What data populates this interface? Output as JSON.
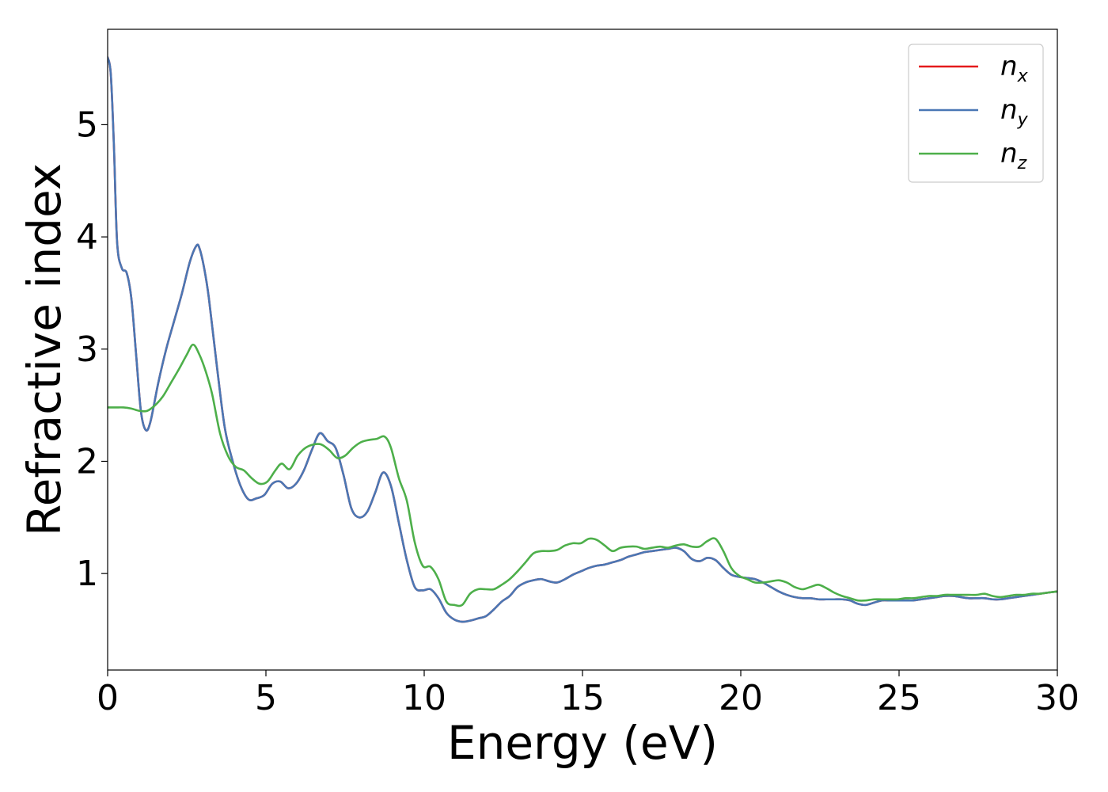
{
  "chart_data": {
    "type": "line",
    "xlabel": "Energy (eV)",
    "ylabel": "Refractive index",
    "xlim": [
      0,
      30
    ],
    "ylim": [
      0.14,
      5.85
    ],
    "x_ticks": [
      0,
      5,
      10,
      15,
      20,
      25,
      30
    ],
    "y_ticks": [
      1,
      2,
      3,
      4,
      5
    ],
    "grid": false,
    "legend_position": "top-right",
    "series": [
      {
        "name": "n_x",
        "label_main": "n",
        "label_sub": "x",
        "color": "#e41a1c",
        "x": [
          0,
          0.1,
          0.2,
          0.3,
          0.45,
          0.6,
          0.75,
          0.9,
          1.05,
          1.2,
          1.35,
          1.6,
          1.85,
          2.1,
          2.35,
          2.6,
          2.8,
          2.9,
          3.05,
          3.2,
          3.45,
          3.7,
          3.95,
          4.2,
          4.45,
          4.7,
          4.95,
          5.2,
          5.45,
          5.7,
          5.95,
          6.2,
          6.45,
          6.7,
          6.95,
          7.2,
          7.45,
          7.7,
          7.95,
          8.2,
          8.45,
          8.7,
          8.95,
          9.2,
          9.45,
          9.7,
          9.95,
          10.2,
          10.45,
          10.7,
          10.95,
          11.2,
          11.45,
          11.7,
          11.95,
          12.2,
          12.45,
          12.7,
          12.95,
          13.2,
          13.45,
          13.7,
          13.95,
          14.2,
          14.45,
          14.7,
          14.95,
          15.2,
          15.45,
          15.7,
          15.95,
          16.2,
          16.45,
          16.7,
          16.95,
          17.2,
          17.45,
          17.7,
          17.95,
          18.2,
          18.45,
          18.7,
          18.95,
          19.2,
          19.45,
          19.7,
          19.95,
          20.2,
          20.45,
          20.7,
          20.95,
          21.2,
          21.45,
          21.7,
          21.95,
          22.2,
          22.45,
          22.7,
          22.95,
          23.2,
          23.45,
          23.7,
          23.95,
          24.2,
          24.45,
          24.7,
          24.95,
          25.2,
          25.45,
          25.7,
          25.95,
          26.2,
          26.45,
          26.7,
          26.95,
          27.2,
          27.45,
          27.7,
          27.95,
          28.2,
          28.45,
          28.7,
          28.95,
          29.2,
          29.45,
          29.7,
          30
        ],
        "y": [
          5.6,
          5.45,
          4.8,
          3.95,
          3.72,
          3.68,
          3.45,
          2.95,
          2.45,
          2.28,
          2.35,
          2.7,
          3.0,
          3.25,
          3.5,
          3.78,
          3.92,
          3.9,
          3.72,
          3.45,
          2.85,
          2.3,
          2.0,
          1.78,
          1.66,
          1.67,
          1.7,
          1.8,
          1.82,
          1.76,
          1.8,
          1.92,
          2.1,
          2.25,
          2.18,
          2.12,
          1.88,
          1.58,
          1.5,
          1.55,
          1.72,
          1.9,
          1.78,
          1.45,
          1.12,
          0.88,
          0.85,
          0.86,
          0.78,
          0.65,
          0.59,
          0.57,
          0.58,
          0.6,
          0.62,
          0.68,
          0.75,
          0.8,
          0.88,
          0.92,
          0.94,
          0.95,
          0.93,
          0.92,
          0.95,
          0.99,
          1.02,
          1.05,
          1.07,
          1.08,
          1.1,
          1.12,
          1.15,
          1.17,
          1.19,
          1.2,
          1.21,
          1.22,
          1.23,
          1.2,
          1.13,
          1.11,
          1.14,
          1.12,
          1.05,
          0.99,
          0.97,
          0.96,
          0.95,
          0.92,
          0.88,
          0.84,
          0.81,
          0.79,
          0.78,
          0.78,
          0.77,
          0.77,
          0.77,
          0.77,
          0.76,
          0.73,
          0.72,
          0.74,
          0.76,
          0.76,
          0.76,
          0.76,
          0.76,
          0.77,
          0.78,
          0.79,
          0.8,
          0.8,
          0.79,
          0.78,
          0.78,
          0.78,
          0.77,
          0.77,
          0.78,
          0.79,
          0.8,
          0.81,
          0.82,
          0.83,
          0.84
        ]
      },
      {
        "name": "n_y",
        "label_main": "n",
        "label_sub": "y",
        "color": "#4a77b4",
        "x": [
          0,
          0.1,
          0.2,
          0.3,
          0.45,
          0.6,
          0.75,
          0.9,
          1.05,
          1.2,
          1.35,
          1.6,
          1.85,
          2.1,
          2.35,
          2.6,
          2.8,
          2.9,
          3.05,
          3.2,
          3.45,
          3.7,
          3.95,
          4.2,
          4.45,
          4.7,
          4.95,
          5.2,
          5.45,
          5.7,
          5.95,
          6.2,
          6.45,
          6.7,
          6.95,
          7.2,
          7.45,
          7.7,
          7.95,
          8.2,
          8.45,
          8.7,
          8.95,
          9.2,
          9.45,
          9.7,
          9.95,
          10.2,
          10.45,
          10.7,
          10.95,
          11.2,
          11.45,
          11.7,
          11.95,
          12.2,
          12.45,
          12.7,
          12.95,
          13.2,
          13.45,
          13.7,
          13.95,
          14.2,
          14.45,
          14.7,
          14.95,
          15.2,
          15.45,
          15.7,
          15.95,
          16.2,
          16.45,
          16.7,
          16.95,
          17.2,
          17.45,
          17.7,
          17.95,
          18.2,
          18.45,
          18.7,
          18.95,
          19.2,
          19.45,
          19.7,
          19.95,
          20.2,
          20.45,
          20.7,
          20.95,
          21.2,
          21.45,
          21.7,
          21.95,
          22.2,
          22.45,
          22.7,
          22.95,
          23.2,
          23.45,
          23.7,
          23.95,
          24.2,
          24.45,
          24.7,
          24.95,
          25.2,
          25.45,
          25.7,
          25.95,
          26.2,
          26.45,
          26.7,
          26.95,
          27.2,
          27.45,
          27.7,
          27.95,
          28.2,
          28.45,
          28.7,
          28.95,
          29.2,
          29.45,
          29.7,
          30
        ],
        "y": [
          5.6,
          5.45,
          4.8,
          3.95,
          3.72,
          3.68,
          3.45,
          2.95,
          2.45,
          2.28,
          2.35,
          2.7,
          3.0,
          3.25,
          3.5,
          3.78,
          3.92,
          3.9,
          3.72,
          3.45,
          2.85,
          2.3,
          2.0,
          1.78,
          1.66,
          1.67,
          1.7,
          1.8,
          1.82,
          1.76,
          1.8,
          1.92,
          2.1,
          2.25,
          2.18,
          2.12,
          1.88,
          1.58,
          1.5,
          1.55,
          1.72,
          1.9,
          1.78,
          1.45,
          1.12,
          0.88,
          0.85,
          0.86,
          0.78,
          0.65,
          0.59,
          0.57,
          0.58,
          0.6,
          0.62,
          0.68,
          0.75,
          0.8,
          0.88,
          0.92,
          0.94,
          0.95,
          0.93,
          0.92,
          0.95,
          0.99,
          1.02,
          1.05,
          1.07,
          1.08,
          1.1,
          1.12,
          1.15,
          1.17,
          1.19,
          1.2,
          1.21,
          1.22,
          1.23,
          1.2,
          1.13,
          1.11,
          1.14,
          1.12,
          1.05,
          0.99,
          0.97,
          0.96,
          0.95,
          0.92,
          0.88,
          0.84,
          0.81,
          0.79,
          0.78,
          0.78,
          0.77,
          0.77,
          0.77,
          0.77,
          0.76,
          0.73,
          0.72,
          0.74,
          0.76,
          0.76,
          0.76,
          0.76,
          0.76,
          0.77,
          0.78,
          0.79,
          0.8,
          0.8,
          0.79,
          0.78,
          0.78,
          0.78,
          0.77,
          0.77,
          0.78,
          0.79,
          0.8,
          0.81,
          0.82,
          0.83,
          0.84
        ]
      },
      {
        "name": "n_z",
        "label_main": "n",
        "label_sub": "z",
        "color": "#4daf4a",
        "x": [
          0,
          0.25,
          0.5,
          0.75,
          1.0,
          1.25,
          1.5,
          1.75,
          2.0,
          2.25,
          2.5,
          2.7,
          2.9,
          3.1,
          3.3,
          3.55,
          3.8,
          4.05,
          4.3,
          4.55,
          4.8,
          5.05,
          5.3,
          5.5,
          5.75,
          6.0,
          6.25,
          6.5,
          6.75,
          7.0,
          7.25,
          7.5,
          7.75,
          8.0,
          8.25,
          8.5,
          8.75,
          8.95,
          9.2,
          9.45,
          9.7,
          9.95,
          10.2,
          10.45,
          10.7,
          10.95,
          11.2,
          11.45,
          11.7,
          11.95,
          12.2,
          12.45,
          12.7,
          12.95,
          13.2,
          13.45,
          13.7,
          13.95,
          14.2,
          14.45,
          14.7,
          14.95,
          15.2,
          15.45,
          15.7,
          15.95,
          16.2,
          16.45,
          16.7,
          16.95,
          17.2,
          17.45,
          17.7,
          17.95,
          18.2,
          18.45,
          18.7,
          18.95,
          19.2,
          19.45,
          19.7,
          19.95,
          20.2,
          20.45,
          20.7,
          20.95,
          21.2,
          21.45,
          21.7,
          21.95,
          22.2,
          22.45,
          22.7,
          22.95,
          23.2,
          23.45,
          23.7,
          23.95,
          24.2,
          24.45,
          24.7,
          24.95,
          25.2,
          25.45,
          25.7,
          25.95,
          26.2,
          26.45,
          26.7,
          26.95,
          27.2,
          27.45,
          27.7,
          27.95,
          28.2,
          28.45,
          28.7,
          28.95,
          29.2,
          29.45,
          29.7,
          30
        ],
        "y": [
          2.48,
          2.48,
          2.48,
          2.47,
          2.45,
          2.45,
          2.5,
          2.58,
          2.7,
          2.82,
          2.95,
          3.04,
          2.95,
          2.8,
          2.6,
          2.25,
          2.05,
          1.95,
          1.92,
          1.85,
          1.8,
          1.82,
          1.92,
          1.98,
          1.93,
          2.05,
          2.12,
          2.15,
          2.15,
          2.1,
          2.03,
          2.05,
          2.12,
          2.17,
          2.19,
          2.2,
          2.22,
          2.12,
          1.85,
          1.65,
          1.28,
          1.07,
          1.06,
          0.95,
          0.75,
          0.72,
          0.72,
          0.82,
          0.86,
          0.86,
          0.86,
          0.9,
          0.95,
          1.02,
          1.1,
          1.18,
          1.2,
          1.2,
          1.21,
          1.25,
          1.27,
          1.27,
          1.31,
          1.3,
          1.25,
          1.2,
          1.23,
          1.24,
          1.24,
          1.22,
          1.23,
          1.24,
          1.23,
          1.25,
          1.26,
          1.24,
          1.24,
          1.29,
          1.31,
          1.2,
          1.05,
          0.98,
          0.95,
          0.92,
          0.92,
          0.93,
          0.94,
          0.92,
          0.88,
          0.86,
          0.88,
          0.9,
          0.87,
          0.83,
          0.8,
          0.78,
          0.76,
          0.76,
          0.77,
          0.77,
          0.77,
          0.77,
          0.78,
          0.78,
          0.79,
          0.8,
          0.8,
          0.81,
          0.81,
          0.81,
          0.81,
          0.81,
          0.82,
          0.8,
          0.79,
          0.8,
          0.81,
          0.81,
          0.82,
          0.82,
          0.83,
          0.84
        ]
      }
    ]
  }
}
